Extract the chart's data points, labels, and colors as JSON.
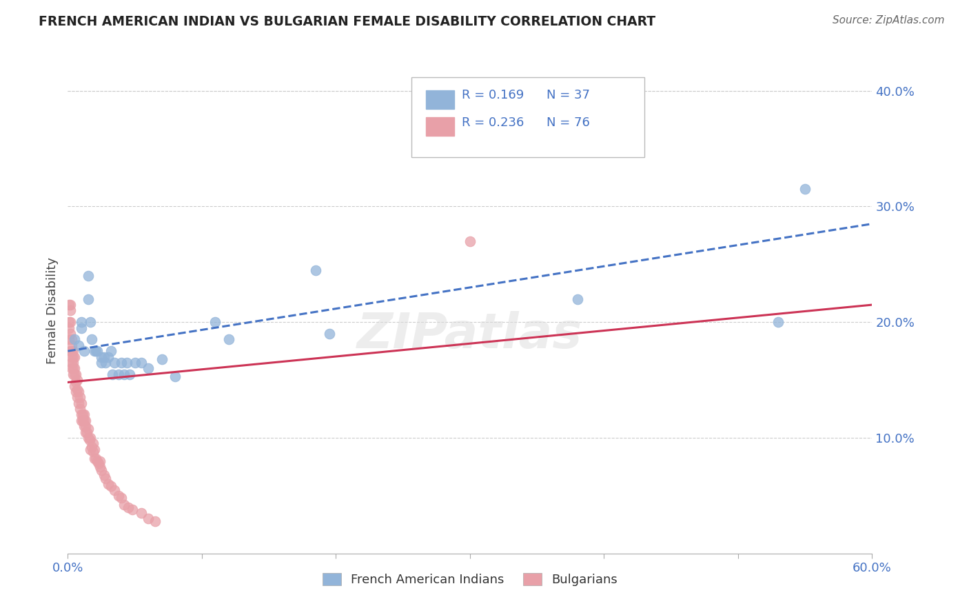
{
  "title": "FRENCH AMERICAN INDIAN VS BULGARIAN FEMALE DISABILITY CORRELATION CHART",
  "source": "Source: ZipAtlas.com",
  "ylabel": "Female Disability",
  "xlim": [
    0.0,
    0.6
  ],
  "ylim": [
    0.0,
    0.42
  ],
  "yticks": [
    0.1,
    0.2,
    0.3,
    0.4
  ],
  "xticks": [
    0.0,
    0.1,
    0.2,
    0.3,
    0.4,
    0.5,
    0.6
  ],
  "legend_labels": [
    "French American Indians",
    "Bulgarians"
  ],
  "legend_r": [
    "R = 0.169",
    "R = 0.236"
  ],
  "legend_n": [
    "N = 37",
    "N = 76"
  ],
  "blue_color": "#92b4d9",
  "pink_color": "#e8a0a8",
  "blue_line_color": "#4472c4",
  "pink_line_color": "#cc3355",
  "axis_label_color": "#4472c4",
  "grid_color": "#cccccc",
  "blue_x": [
    0.005,
    0.008,
    0.01,
    0.01,
    0.012,
    0.015,
    0.015,
    0.017,
    0.018,
    0.02,
    0.021,
    0.022,
    0.025,
    0.025,
    0.027,
    0.028,
    0.03,
    0.032,
    0.033,
    0.035,
    0.038,
    0.04,
    0.042,
    0.044,
    0.046,
    0.05,
    0.055,
    0.06,
    0.07,
    0.08,
    0.11,
    0.12,
    0.185,
    0.195,
    0.38,
    0.53,
    0.55
  ],
  "blue_y": [
    0.185,
    0.18,
    0.195,
    0.2,
    0.175,
    0.24,
    0.22,
    0.2,
    0.185,
    0.175,
    0.175,
    0.175,
    0.165,
    0.17,
    0.17,
    0.165,
    0.17,
    0.175,
    0.155,
    0.165,
    0.155,
    0.165,
    0.155,
    0.165,
    0.155,
    0.165,
    0.165,
    0.16,
    0.168,
    0.153,
    0.2,
    0.185,
    0.245,
    0.19,
    0.22,
    0.2,
    0.315
  ],
  "pink_x": [
    0.001,
    0.001,
    0.001,
    0.001,
    0.002,
    0.002,
    0.002,
    0.002,
    0.002,
    0.003,
    0.003,
    0.003,
    0.003,
    0.003,
    0.003,
    0.004,
    0.004,
    0.004,
    0.004,
    0.004,
    0.005,
    0.005,
    0.005,
    0.005,
    0.006,
    0.006,
    0.006,
    0.007,
    0.007,
    0.007,
    0.008,
    0.008,
    0.009,
    0.009,
    0.01,
    0.01,
    0.01,
    0.011,
    0.011,
    0.012,
    0.012,
    0.012,
    0.013,
    0.013,
    0.013,
    0.014,
    0.015,
    0.015,
    0.016,
    0.017,
    0.017,
    0.018,
    0.019,
    0.019,
    0.02,
    0.02,
    0.021,
    0.022,
    0.023,
    0.024,
    0.024,
    0.025,
    0.027,
    0.028,
    0.03,
    0.032,
    0.035,
    0.038,
    0.04,
    0.042,
    0.045,
    0.048,
    0.055,
    0.06,
    0.065,
    0.3
  ],
  "pink_y": [
    0.185,
    0.195,
    0.2,
    0.215,
    0.175,
    0.19,
    0.2,
    0.21,
    0.215,
    0.16,
    0.165,
    0.17,
    0.175,
    0.18,
    0.185,
    0.155,
    0.16,
    0.165,
    0.17,
    0.175,
    0.145,
    0.155,
    0.16,
    0.17,
    0.14,
    0.148,
    0.155,
    0.135,
    0.142,
    0.15,
    0.13,
    0.14,
    0.125,
    0.135,
    0.12,
    0.13,
    0.115,
    0.12,
    0.115,
    0.11,
    0.115,
    0.12,
    0.105,
    0.11,
    0.115,
    0.105,
    0.1,
    0.108,
    0.098,
    0.1,
    0.09,
    0.092,
    0.088,
    0.095,
    0.082,
    0.09,
    0.082,
    0.08,
    0.078,
    0.075,
    0.08,
    0.072,
    0.068,
    0.065,
    0.06,
    0.058,
    0.055,
    0.05,
    0.048,
    0.042,
    0.04,
    0.038,
    0.035,
    0.03,
    0.028,
    0.27
  ]
}
